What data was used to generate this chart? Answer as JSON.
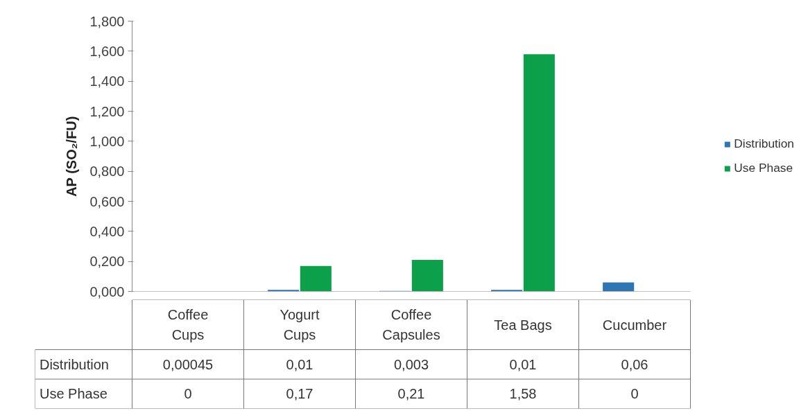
{
  "chart_data": {
    "type": "bar",
    "ylabel": "AP (SO₂/FU)",
    "categories": [
      "Coffee Cups",
      "Yogurt Cups",
      "Coffee Capsules",
      "Tea Bags",
      "Cucumber"
    ],
    "series": [
      {
        "name": "Distribution",
        "color": "#2e75b6",
        "values": [
          0.00045,
          0.01,
          0.003,
          0.01,
          0.06
        ],
        "value_labels": [
          "0,00045",
          "0,01",
          "0,003",
          "0,01",
          "0,06"
        ]
      },
      {
        "name": "Use Phase",
        "color": "#0ca04b",
        "values": [
          0,
          0.17,
          0.21,
          1.58,
          0
        ],
        "value_labels": [
          "0",
          "0,17",
          "0,21",
          "1,58",
          "0"
        ]
      }
    ],
    "ylim": [
      0,
      1.8
    ],
    "yticks": [
      {
        "value": 0,
        "label": "0,000"
      },
      {
        "value": 0.2,
        "label": "0,200"
      },
      {
        "value": 0.4,
        "label": "0,400"
      },
      {
        "value": 0.6,
        "label": "0,600"
      },
      {
        "value": 0.8,
        "label": "0,800"
      },
      {
        "value": 1.0,
        "label": "1,000"
      },
      {
        "value": 1.2,
        "label": "1,200"
      },
      {
        "value": 1.4,
        "label": "1,400"
      },
      {
        "value": 1.6,
        "label": "1,600"
      },
      {
        "value": 1.8,
        "label": "1,800"
      }
    ],
    "grid": false,
    "legend": "right"
  }
}
